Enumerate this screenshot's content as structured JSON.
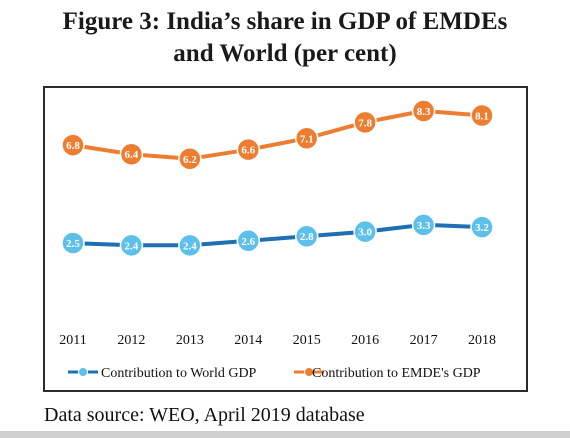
{
  "title_lines": [
    "Figure 3: India’s share in GDP of EMDEs",
    "and World (per cent)"
  ],
  "source": "Data source: WEO, April 2019 database",
  "chart_data": {
    "type": "line",
    "title": "Figure 3: India’s share in GDP of EMDEs and World (per cent)",
    "x": [
      "2011",
      "2012",
      "2013",
      "2014",
      "2015",
      "2016",
      "2017",
      "2018"
    ],
    "series": [
      {
        "name": "Contribution to World GDP",
        "values": [
          2.5,
          2.4,
          2.4,
          2.6,
          2.8,
          3.0,
          3.3,
          3.2
        ],
        "labels": [
          "2.5",
          "2.4",
          "2.4",
          "2.6",
          "2.8",
          "3.0",
          "3.3",
          "3.2"
        ],
        "color": "#1f6fb5",
        "marker_color": "#5cc0ea"
      },
      {
        "name": "Contribution to EMDE's GDP",
        "values": [
          6.8,
          6.4,
          6.2,
          6.6,
          7.1,
          7.8,
          8.3,
          8.1
        ],
        "labels": [
          "6.8",
          "6.4",
          "6.2",
          "6.6",
          "7.1",
          "7.8",
          "8.3",
          "8.1"
        ],
        "color": "#ed7d31",
        "marker_color": "#ed7d31"
      }
    ],
    "ylim": [
      0,
      9
    ],
    "grid": false,
    "legend_position": "bottom"
  }
}
